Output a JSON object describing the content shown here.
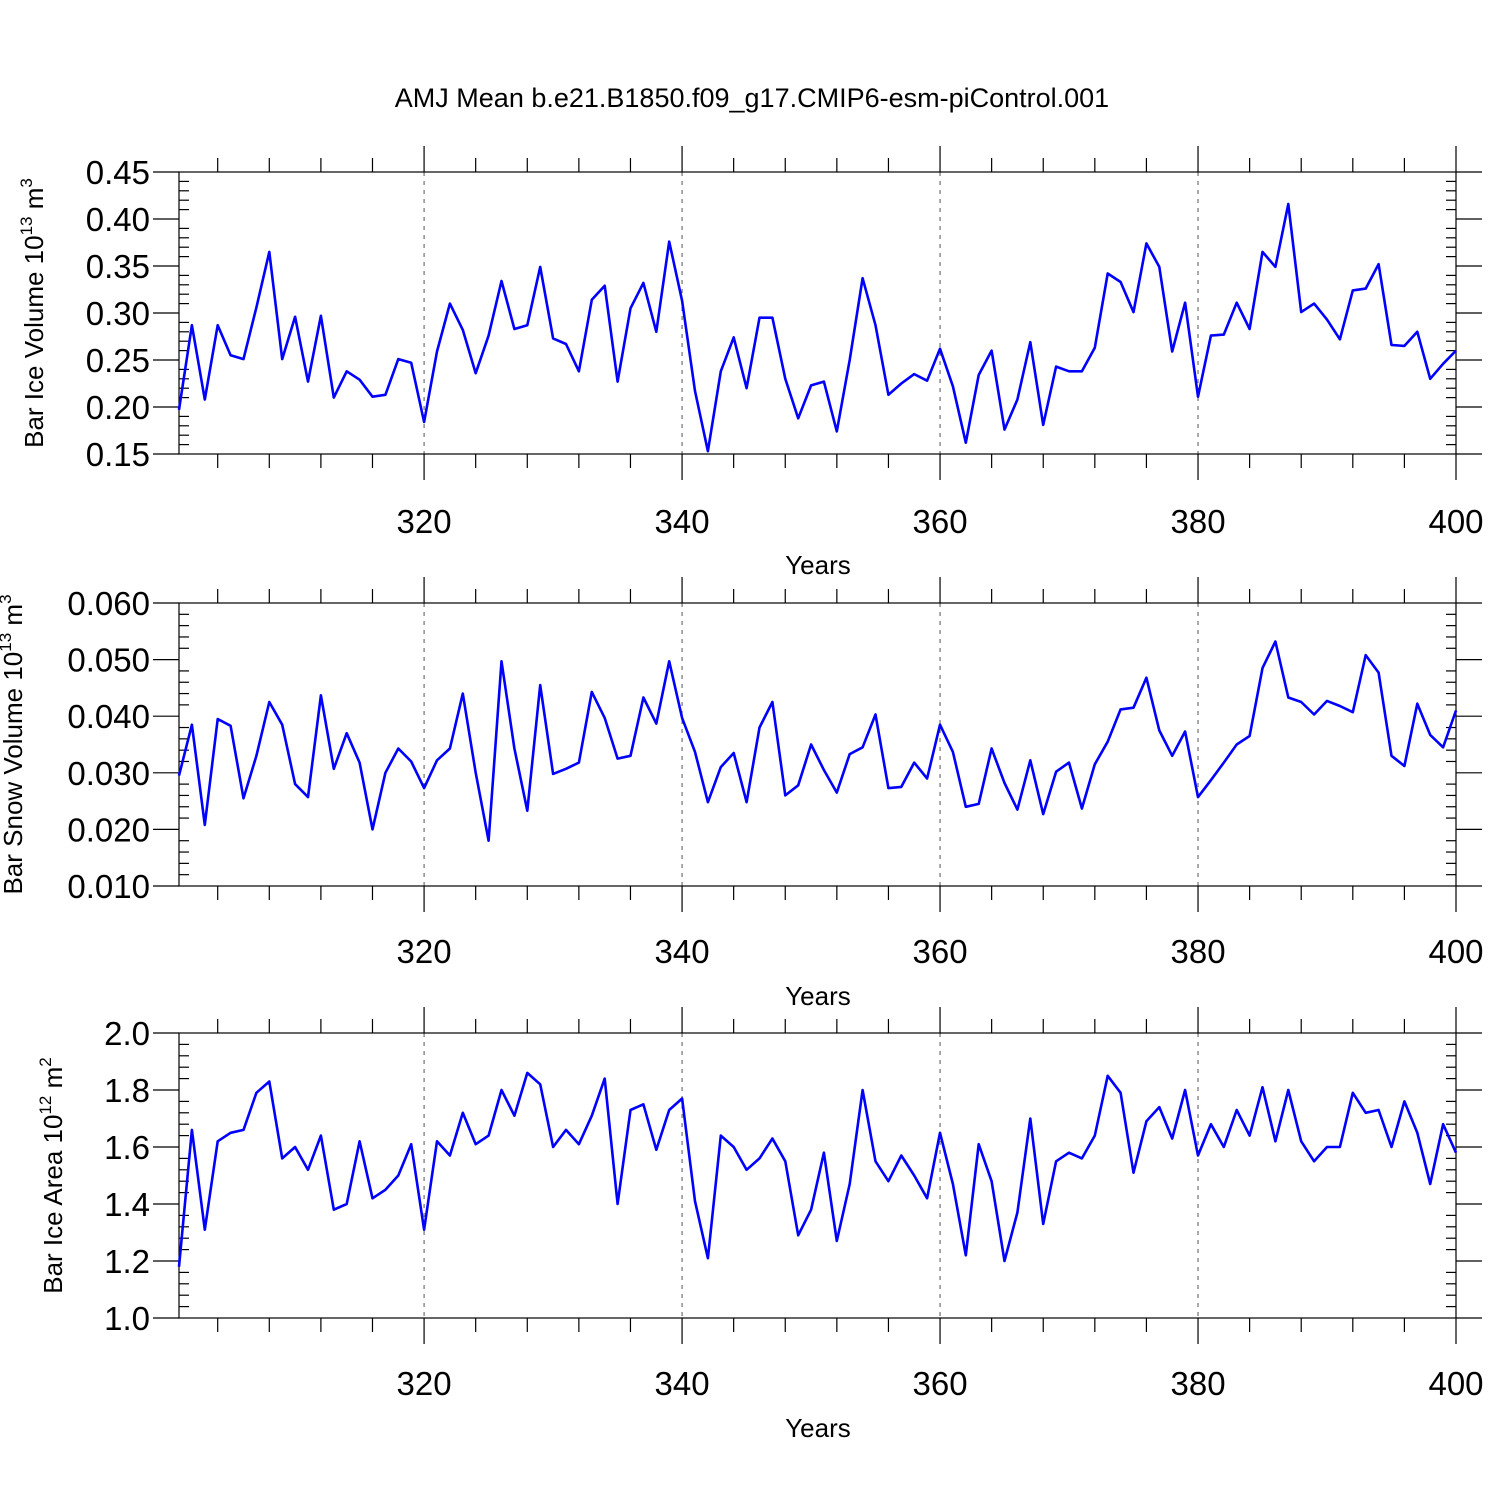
{
  "figure_title": "AMJ Mean b.e21.B1850.f09_g17.CMIP6-esm-piControl.001",
  "colors": {
    "line": "#0000ff",
    "axis": "#000000",
    "grid": "#555555"
  },
  "chart_data": [
    {
      "type": "line",
      "title": "",
      "ylabel": "Bar Ice Volume 10",
      "ylabel_exp": "13",
      "ylabel_unit": " m",
      "ylabel_unit_exp": "3",
      "xlabel": "Years",
      "xlim": [
        301,
        400
      ],
      "ylim": [
        0.15,
        0.45
      ],
      "ytick_values": [
        0.15,
        0.2,
        0.25,
        0.3,
        0.35,
        0.4,
        0.45
      ],
      "ytick_labels": [
        "0.15",
        "0.20",
        "0.25",
        "0.30",
        "0.35",
        "0.40",
        "0.45"
      ],
      "xtick_values": [
        320,
        340,
        360,
        380,
        400
      ],
      "xtick_labels": [
        "320",
        "340",
        "360",
        "380",
        "400"
      ],
      "grid_x": [
        320,
        340,
        360,
        380
      ],
      "series": [
        {
          "name": "Bar Ice Volume",
          "x_start": 301,
          "values": [
            0.197,
            0.287,
            0.208,
            0.287,
            0.255,
            0.251,
            0.306,
            0.365,
            0.251,
            0.296,
            0.227,
            0.297,
            0.21,
            0.238,
            0.229,
            0.211,
            0.213,
            0.251,
            0.247,
            0.184,
            0.259,
            0.31,
            0.282,
            0.236,
            0.276,
            0.334,
            0.283,
            0.287,
            0.349,
            0.273,
            0.267,
            0.238,
            0.314,
            0.329,
            0.227,
            0.305,
            0.332,
            0.28,
            0.376,
            0.313,
            0.217,
            0.153,
            0.238,
            0.274,
            0.22,
            0.295,
            0.295,
            0.23,
            0.188,
            0.223,
            0.227,
            0.174,
            0.25,
            0.337,
            0.287,
            0.213,
            0.225,
            0.235,
            0.228,
            0.262,
            0.222,
            0.162,
            0.234,
            0.26,
            0.176,
            0.208,
            0.269,
            0.181,
            0.243,
            0.238,
            0.238,
            0.263,
            0.342,
            0.333,
            0.301,
            0.374,
            0.349,
            0.259,
            0.311,
            0.211,
            0.276,
            0.277,
            0.311,
            0.283,
            0.365,
            0.349,
            0.416,
            0.301,
            0.31,
            0.293,
            0.272,
            0.324,
            0.326,
            0.352,
            0.266,
            0.265,
            0.28,
            0.23,
            0.246,
            0.26
          ]
        }
      ]
    },
    {
      "type": "line",
      "title": "",
      "ylabel": "Bar Snow Volume 10",
      "ylabel_exp": "13",
      "ylabel_unit": " m",
      "ylabel_unit_exp": "3",
      "xlabel": "Years",
      "xlim": [
        301,
        400
      ],
      "ylim": [
        0.01,
        0.06
      ],
      "ytick_values": [
        0.01,
        0.02,
        0.03,
        0.04,
        0.05,
        0.06
      ],
      "ytick_labels": [
        "0.010",
        "0.020",
        "0.030",
        "0.040",
        "0.050",
        "0.060"
      ],
      "xtick_values": [
        320,
        340,
        360,
        380,
        400
      ],
      "xtick_labels": [
        "320",
        "340",
        "360",
        "380",
        "400"
      ],
      "grid_x": [
        320,
        340,
        360,
        380
      ],
      "series": [
        {
          "name": "Bar Snow Volume",
          "x_start": 301,
          "values": [
            0.0295,
            0.0385,
            0.0208,
            0.0395,
            0.0383,
            0.0255,
            0.033,
            0.0425,
            0.0385,
            0.028,
            0.0257,
            0.0437,
            0.0307,
            0.037,
            0.0318,
            0.02,
            0.03,
            0.0343,
            0.032,
            0.0273,
            0.0322,
            0.0343,
            0.044,
            0.03,
            0.018,
            0.0497,
            0.0343,
            0.0233,
            0.0455,
            0.0298,
            0.0307,
            0.0318,
            0.0443,
            0.0397,
            0.0325,
            0.033,
            0.0433,
            0.0387,
            0.0497,
            0.0397,
            0.0337,
            0.0248,
            0.031,
            0.0335,
            0.0248,
            0.038,
            0.0425,
            0.026,
            0.0278,
            0.035,
            0.0305,
            0.0265,
            0.0333,
            0.0345,
            0.0403,
            0.0273,
            0.0275,
            0.0318,
            0.029,
            0.0385,
            0.0337,
            0.024,
            0.0245,
            0.0343,
            0.0282,
            0.0235,
            0.0322,
            0.0227,
            0.0302,
            0.0318,
            0.0237,
            0.0315,
            0.0355,
            0.0412,
            0.0415,
            0.0468,
            0.0375,
            0.033,
            0.0373,
            0.0257,
            0.0287,
            0.0318,
            0.035,
            0.0365,
            0.0485,
            0.0532,
            0.0433,
            0.0425,
            0.0403,
            0.0427,
            0.0418,
            0.0407,
            0.0508,
            0.0477,
            0.033,
            0.0312,
            0.0422,
            0.0367,
            0.0345,
            0.041
          ]
        }
      ]
    },
    {
      "type": "line",
      "title": "",
      "ylabel": "Bar Ice Area 10",
      "ylabel_exp": "12",
      "ylabel_unit": " m",
      "ylabel_unit_exp": "2",
      "xlabel": "Years",
      "xlim": [
        301,
        400
      ],
      "ylim": [
        1.0,
        2.0
      ],
      "ytick_values": [
        1.0,
        1.2,
        1.4,
        1.6,
        1.8,
        2.0
      ],
      "ytick_labels": [
        "1.0",
        "1.2",
        "1.4",
        "1.6",
        "1.8",
        "2.0"
      ],
      "xtick_values": [
        320,
        340,
        360,
        380,
        400
      ],
      "xtick_labels": [
        "320",
        "340",
        "360",
        "380",
        "400"
      ],
      "grid_x": [
        320,
        340,
        360,
        380
      ],
      "series": [
        {
          "name": "Bar Ice Area",
          "x_start": 301,
          "values": [
            1.18,
            1.66,
            1.31,
            1.62,
            1.65,
            1.66,
            1.79,
            1.83,
            1.56,
            1.6,
            1.52,
            1.64,
            1.38,
            1.4,
            1.62,
            1.42,
            1.45,
            1.5,
            1.61,
            1.31,
            1.62,
            1.57,
            1.72,
            1.61,
            1.64,
            1.8,
            1.71,
            1.86,
            1.82,
            1.6,
            1.66,
            1.61,
            1.71,
            1.84,
            1.4,
            1.73,
            1.75,
            1.59,
            1.73,
            1.77,
            1.41,
            1.21,
            1.64,
            1.6,
            1.52,
            1.56,
            1.63,
            1.55,
            1.29,
            1.38,
            1.58,
            1.27,
            1.47,
            1.8,
            1.55,
            1.48,
            1.57,
            1.5,
            1.42,
            1.65,
            1.47,
            1.22,
            1.61,
            1.48,
            1.2,
            1.37,
            1.7,
            1.33,
            1.55,
            1.58,
            1.56,
            1.64,
            1.85,
            1.79,
            1.51,
            1.69,
            1.74,
            1.63,
            1.8,
            1.57,
            1.68,
            1.6,
            1.73,
            1.64,
            1.81,
            1.62,
            1.8,
            1.62,
            1.55,
            1.6,
            1.6,
            1.79,
            1.72,
            1.73,
            1.6,
            1.76,
            1.65,
            1.47,
            1.68,
            1.58
          ]
        }
      ]
    }
  ]
}
